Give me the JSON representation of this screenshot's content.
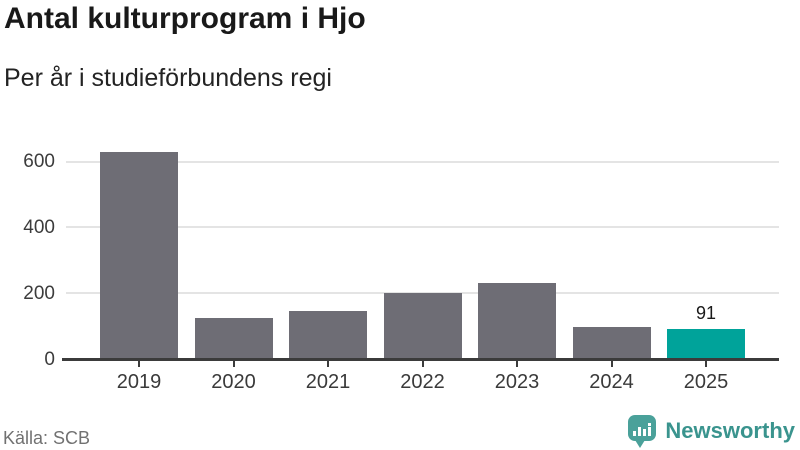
{
  "header": {
    "title": "Antal kulturprogram i Hjo",
    "subtitle": "Per år i studieförbundens regi"
  },
  "footer": {
    "source": "Källa: SCB",
    "brand": "Newsworthy",
    "brand_icon": "newsworthy-speech-bubble-barchart-icon"
  },
  "colors": {
    "bar": "#6e6d75",
    "highlight": "#00a39a",
    "gridline": "#e4e4e4",
    "axis_line": "#3b3b3b",
    "title_text": "#191919",
    "axis_text": "#3c3c3c",
    "source_text": "#717171",
    "brand_text": "#3a948e",
    "brand_icon": "#4aa19a"
  },
  "chart_data": {
    "type": "bar",
    "title": "Antal kulturprogram i Hjo",
    "subtitle": "Per år i studieförbundens regi",
    "categories": [
      "2019",
      "2020",
      "2021",
      "2022",
      "2023",
      "2024",
      "2025"
    ],
    "values": [
      630,
      125,
      147,
      202,
      232,
      96,
      91
    ],
    "data_labels": [
      "",
      "",
      "",
      "",
      "",
      "",
      "91"
    ],
    "highlight_index": 6,
    "xlabel": "",
    "ylabel": "",
    "yticks": [
      0,
      200,
      400,
      600
    ],
    "ylim": [
      0,
      660
    ],
    "grid": true,
    "legend": false
  }
}
